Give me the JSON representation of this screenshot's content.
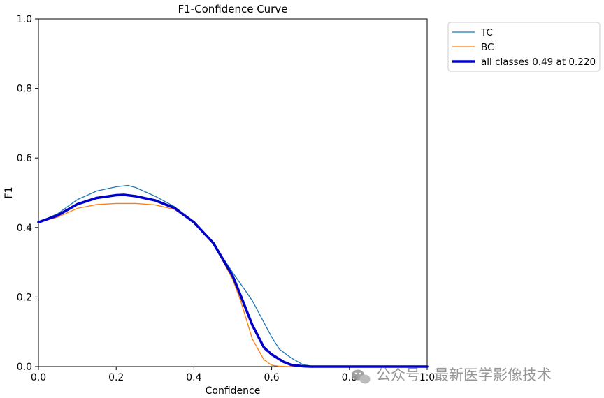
{
  "chart_data": {
    "type": "line",
    "title": "F1-Confidence Curve",
    "xlabel": "Confidence",
    "ylabel": "F1",
    "xlim": [
      0,
      1
    ],
    "ylim": [
      0,
      1
    ],
    "xticks": [
      "0.0",
      "0.2",
      "0.4",
      "0.6",
      "0.8",
      "1.0"
    ],
    "yticks": [
      "0.0",
      "0.2",
      "0.4",
      "0.6",
      "0.8",
      "1.0"
    ],
    "grid": false,
    "legend_position": "outside-top-right",
    "series": [
      {
        "name": "TC",
        "color": "#1f77b4",
        "x": [
          0,
          0.05,
          0.1,
          0.15,
          0.2,
          0.23,
          0.25,
          0.3,
          0.35,
          0.4,
          0.45,
          0.5,
          0.55,
          0.6,
          0.62,
          0.65,
          0.68,
          0.7,
          0.8,
          0.9,
          1.0
        ],
        "y": [
          0.415,
          0.44,
          0.48,
          0.505,
          0.517,
          0.521,
          0.515,
          0.49,
          0.46,
          0.415,
          0.355,
          0.27,
          0.19,
          0.085,
          0.05,
          0.025,
          0.006,
          0.002,
          0.001,
          0,
          0
        ]
      },
      {
        "name": "BC",
        "color": "#ff7f0e",
        "x": [
          0,
          0.05,
          0.1,
          0.15,
          0.2,
          0.25,
          0.3,
          0.35,
          0.4,
          0.45,
          0.5,
          0.52,
          0.55,
          0.58,
          0.6,
          0.62,
          0.65,
          0.7,
          0.8,
          0.9,
          1.0
        ],
        "y": [
          0.415,
          0.43,
          0.455,
          0.466,
          0.469,
          0.469,
          0.465,
          0.452,
          0.415,
          0.355,
          0.25,
          0.19,
          0.08,
          0.02,
          0.004,
          0.001,
          0,
          0,
          0,
          0,
          0
        ]
      },
      {
        "name": "all classes 0.49 at 0.220",
        "color": "#0000c8",
        "x": [
          0,
          0.05,
          0.1,
          0.15,
          0.2,
          0.22,
          0.25,
          0.3,
          0.35,
          0.4,
          0.45,
          0.5,
          0.52,
          0.55,
          0.58,
          0.6,
          0.63,
          0.65,
          0.68,
          0.7,
          0.8,
          0.9,
          1.0
        ],
        "y": [
          0.415,
          0.435,
          0.467,
          0.485,
          0.493,
          0.494,
          0.49,
          0.478,
          0.456,
          0.415,
          0.355,
          0.26,
          0.205,
          0.12,
          0.055,
          0.035,
          0.014,
          0.005,
          0.001,
          0,
          0,
          0,
          0
        ]
      }
    ]
  },
  "watermark": {
    "text": "公众号 · 最新医学影像技术",
    "icon": "wechat-icon"
  }
}
